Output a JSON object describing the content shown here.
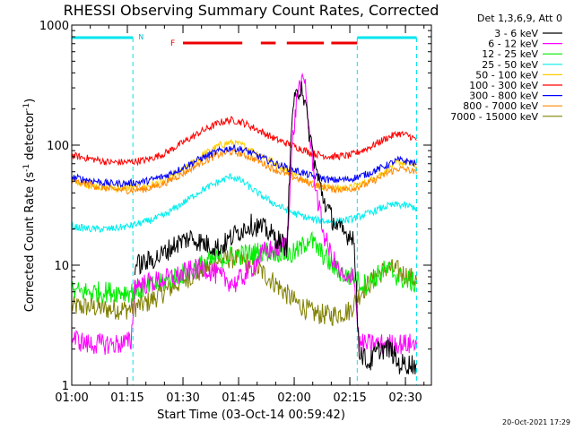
{
  "chart_data": {
    "type": "line",
    "title": "RHESSI Observing Summary Count Rates, Corrected",
    "xlabel": "Start Time (03-Oct-14 00:59:42)",
    "ylabel_main": "Corrected Count Rate (s",
    "ylabel_sup1": "-1",
    "ylabel_mid": " detector",
    "ylabel_sup2": "-1",
    "ylabel_end": ")",
    "y_scale": "log",
    "ylim": [
      1,
      1000
    ],
    "xlim_minutes": [
      0,
      97
    ],
    "x_ticks": [
      {
        "t": 0,
        "label": "01:00"
      },
      {
        "t": 15,
        "label": "01:15"
      },
      {
        "t": 30,
        "label": "01:30"
      },
      {
        "t": 45,
        "label": "01:45"
      },
      {
        "t": 60,
        "label": "02:00"
      },
      {
        "t": 75,
        "label": "02:15"
      },
      {
        "t": 90,
        "label": "02:30"
      }
    ],
    "y_ticks": [
      {
        "v": 1,
        "label": "1"
      },
      {
        "v": 10,
        "label": "10"
      },
      {
        "v": 100,
        "label": "100"
      },
      {
        "v": 1000,
        "label": "1000"
      }
    ],
    "legend_header": "Det 1,3,6,9, Att 0",
    "legend_position": "right",
    "night_label": "N",
    "flare_label": "F",
    "night_intervals": [
      [
        0,
        16.5
      ],
      [
        77,
        93
      ]
    ],
    "flare_intervals": [
      [
        30,
        46
      ],
      [
        51,
        55
      ],
      [
        58,
        68
      ],
      [
        70,
        77
      ]
    ],
    "series": [
      {
        "name": "3 - 6 keV",
        "color": "#000000",
        "points": [
          [
            17,
            10
          ],
          [
            20,
            10.5
          ],
          [
            24,
            12
          ],
          [
            28,
            15
          ],
          [
            32,
            17
          ],
          [
            36,
            15
          ],
          [
            40,
            14
          ],
          [
            44,
            18
          ],
          [
            48,
            22
          ],
          [
            52,
            20
          ],
          [
            56,
            16
          ],
          [
            58,
            14
          ],
          [
            59.5,
            200
          ],
          [
            62,
            330
          ],
          [
            64,
            130
          ],
          [
            66,
            60
          ],
          [
            68,
            35
          ],
          [
            70,
            25
          ],
          [
            72,
            20
          ],
          [
            74,
            18
          ],
          [
            76,
            18
          ],
          [
            77.5,
            2
          ],
          [
            80,
            1.5
          ],
          [
            83,
            2
          ],
          [
            86,
            2
          ],
          [
            88,
            1.5
          ],
          [
            90,
            1.5
          ],
          [
            93,
            1.5
          ]
        ]
      },
      {
        "name": "6 - 12 keV",
        "color": "#ff00ff",
        "points": [
          [
            0,
            2.5
          ],
          [
            4,
            2.2
          ],
          [
            8,
            2.2
          ],
          [
            12,
            2.2
          ],
          [
            16,
            2.3
          ],
          [
            17,
            7
          ],
          [
            20,
            7
          ],
          [
            24,
            7.5
          ],
          [
            28,
            8
          ],
          [
            32,
            9
          ],
          [
            36,
            9.5
          ],
          [
            40,
            8
          ],
          [
            44,
            7
          ],
          [
            48,
            9
          ],
          [
            52,
            13
          ],
          [
            56,
            14
          ],
          [
            58,
            15
          ],
          [
            59.5,
            100
          ],
          [
            61,
            300
          ],
          [
            63,
            330
          ],
          [
            64,
            130
          ],
          [
            66,
            40
          ],
          [
            68,
            18
          ],
          [
            70,
            12
          ],
          [
            72,
            9
          ],
          [
            74,
            7
          ],
          [
            76,
            9
          ],
          [
            77.5,
            2.2
          ],
          [
            80,
            2.2
          ],
          [
            84,
            2.2
          ],
          [
            88,
            2.2
          ],
          [
            93,
            2.2
          ]
        ]
      },
      {
        "name": "12 - 25 keV",
        "color": "#00ee00",
        "points": [
          [
            0,
            6
          ],
          [
            8,
            6
          ],
          [
            16,
            6
          ],
          [
            20,
            6.5
          ],
          [
            24,
            7
          ],
          [
            28,
            8
          ],
          [
            32,
            9
          ],
          [
            36,
            10.5
          ],
          [
            40,
            11.5
          ],
          [
            44,
            12
          ],
          [
            48,
            12.5
          ],
          [
            52,
            13
          ],
          [
            56,
            13
          ],
          [
            59,
            12
          ],
          [
            62,
            14
          ],
          [
            64,
            17
          ],
          [
            66,
            14
          ],
          [
            68,
            12
          ],
          [
            70,
            10
          ],
          [
            72,
            9
          ],
          [
            74,
            8
          ],
          [
            76,
            8
          ],
          [
            78,
            7
          ],
          [
            80,
            7
          ],
          [
            82,
            8
          ],
          [
            84,
            9
          ],
          [
            86,
            9
          ],
          [
            88,
            8
          ],
          [
            90,
            7.5
          ],
          [
            93,
            7
          ]
        ]
      },
      {
        "name": "25 - 50 keV",
        "color": "#00eeee",
        "points": [
          [
            0,
            21
          ],
          [
            5,
            20
          ],
          [
            10,
            20
          ],
          [
            15,
            21
          ],
          [
            20,
            23
          ],
          [
            25,
            26
          ],
          [
            30,
            33
          ],
          [
            35,
            42
          ],
          [
            40,
            50
          ],
          [
            43,
            55
          ],
          [
            46,
            50
          ],
          [
            50,
            40
          ],
          [
            55,
            32
          ],
          [
            60,
            27
          ],
          [
            65,
            24
          ],
          [
            70,
            23
          ],
          [
            75,
            24
          ],
          [
            80,
            27
          ],
          [
            85,
            31
          ],
          [
            88,
            32
          ],
          [
            91,
            31
          ],
          [
            93,
            30
          ]
        ]
      },
      {
        "name": "50 - 100 keV",
        "color": "#ffcc00",
        "points": [
          [
            0,
            50
          ],
          [
            5,
            46
          ],
          [
            10,
            44
          ],
          [
            15,
            44
          ],
          [
            20,
            45
          ],
          [
            25,
            50
          ],
          [
            30,
            62
          ],
          [
            35,
            82
          ],
          [
            40,
            100
          ],
          [
            43,
            105
          ],
          [
            46,
            100
          ],
          [
            50,
            86
          ],
          [
            55,
            70
          ],
          [
            60,
            58
          ],
          [
            65,
            48
          ],
          [
            70,
            44
          ],
          [
            75,
            44
          ],
          [
            80,
            50
          ],
          [
            85,
            62
          ],
          [
            88,
            72
          ],
          [
            91,
            70
          ],
          [
            93,
            66
          ]
        ]
      },
      {
        "name": "100 - 300 keV",
        "color": "#ff0000",
        "points": [
          [
            0,
            82
          ],
          [
            5,
            77
          ],
          [
            10,
            72
          ],
          [
            15,
            72
          ],
          [
            20,
            75
          ],
          [
            25,
            85
          ],
          [
            30,
            105
          ],
          [
            35,
            130
          ],
          [
            40,
            155
          ],
          [
            43,
            162
          ],
          [
            46,
            155
          ],
          [
            50,
            135
          ],
          [
            55,
            112
          ],
          [
            60,
            98
          ],
          [
            65,
            85
          ],
          [
            70,
            80
          ],
          [
            75,
            82
          ],
          [
            80,
            95
          ],
          [
            85,
            115
          ],
          [
            88,
            125
          ],
          [
            91,
            120
          ],
          [
            93,
            110
          ]
        ]
      },
      {
        "name": "300 - 800 keV",
        "color": "#0000ff",
        "points": [
          [
            0,
            54
          ],
          [
            5,
            51
          ],
          [
            10,
            48
          ],
          [
            15,
            48
          ],
          [
            20,
            50
          ],
          [
            25,
            55
          ],
          [
            30,
            65
          ],
          [
            35,
            78
          ],
          [
            40,
            90
          ],
          [
            43,
            95
          ],
          [
            46,
            92
          ],
          [
            50,
            82
          ],
          [
            55,
            70
          ],
          [
            60,
            62
          ],
          [
            65,
            55
          ],
          [
            70,
            51
          ],
          [
            75,
            52
          ],
          [
            80,
            58
          ],
          [
            85,
            68
          ],
          [
            88,
            75
          ],
          [
            91,
            73
          ],
          [
            93,
            70
          ]
        ]
      },
      {
        "name": "800 - 7000 keV",
        "color": "#ff8800",
        "points": [
          [
            0,
            50
          ],
          [
            5,
            47
          ],
          [
            10,
            43
          ],
          [
            15,
            42
          ],
          [
            20,
            43
          ],
          [
            25,
            48
          ],
          [
            30,
            58
          ],
          [
            35,
            72
          ],
          [
            40,
            84
          ],
          [
            43,
            88
          ],
          [
            46,
            84
          ],
          [
            50,
            75
          ],
          [
            55,
            62
          ],
          [
            60,
            54
          ],
          [
            65,
            47
          ],
          [
            70,
            43
          ],
          [
            75,
            43
          ],
          [
            80,
            48
          ],
          [
            85,
            58
          ],
          [
            88,
            64
          ],
          [
            91,
            62
          ],
          [
            93,
            58
          ]
        ]
      },
      {
        "name": "7000 - 15000 keV",
        "color": "#808000",
        "points": [
          [
            0,
            4.5
          ],
          [
            5,
            4.5
          ],
          [
            10,
            4.3
          ],
          [
            15,
            4.3
          ],
          [
            20,
            4.8
          ],
          [
            25,
            6
          ],
          [
            30,
            7.5
          ],
          [
            35,
            9
          ],
          [
            40,
            11
          ],
          [
            43,
            11.5
          ],
          [
            46,
            11
          ],
          [
            50,
            9.5
          ],
          [
            55,
            7
          ],
          [
            60,
            5
          ],
          [
            65,
            4
          ],
          [
            70,
            3.8
          ],
          [
            75,
            4.2
          ],
          [
            78,
            6
          ],
          [
            82,
            8
          ],
          [
            85,
            9.5
          ],
          [
            88,
            9
          ],
          [
            91,
            8
          ],
          [
            93,
            7.5
          ]
        ]
      }
    ]
  },
  "timestamp": "20-Oct-2021 17:29"
}
